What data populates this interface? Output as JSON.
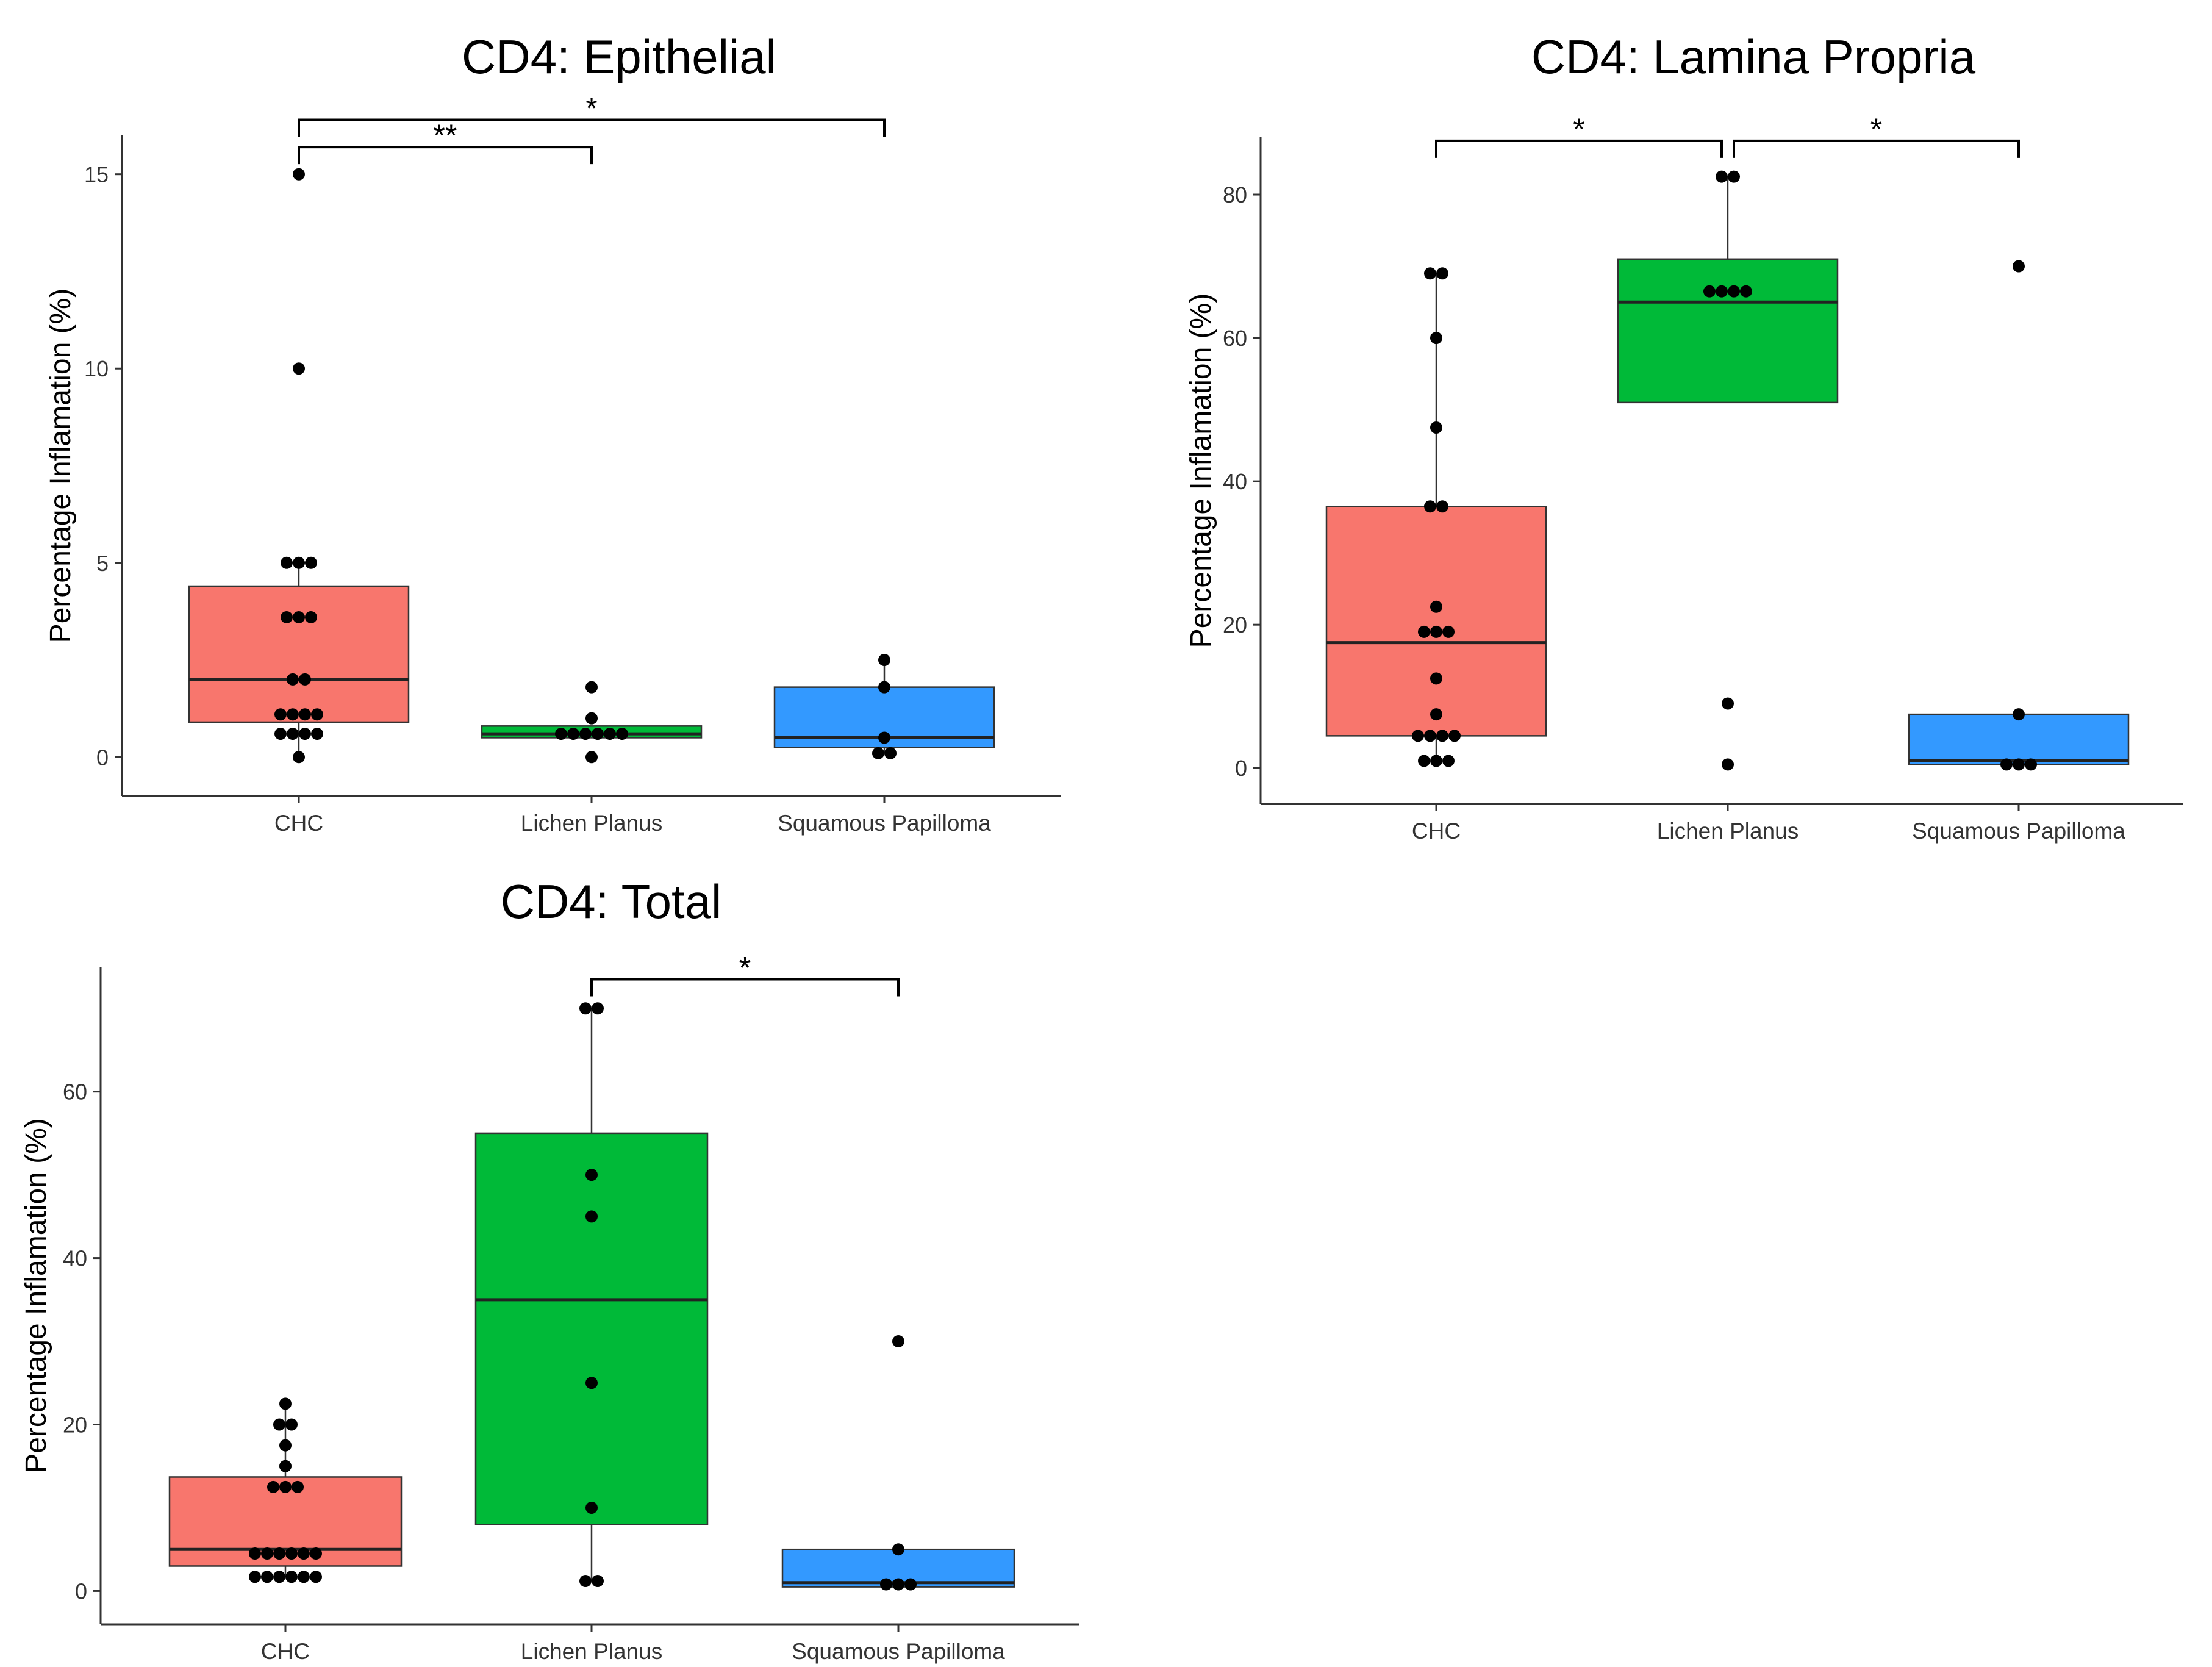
{
  "chart_data": [
    {
      "id": "epithelial",
      "type": "box",
      "title": "CD4: Epithelial",
      "xlabel": "",
      "ylabel": "Percentage Inflamation (%)",
      "ylim": [
        -1,
        16
      ],
      "yticks": [
        0,
        5,
        10,
        15
      ],
      "categories": [
        "CHC",
        "Lichen Planus",
        "Squamous Papilloma"
      ],
      "colors": [
        "#F8766D",
        "#00BA38",
        "#3399FF"
      ],
      "boxes": [
        {
          "q1": 0.9,
          "median": 2.0,
          "q3": 4.4,
          "whisker_low": 0,
          "whisker_high": 5.0
        },
        {
          "q1": 0.5,
          "median": 0.6,
          "q3": 0.8,
          "whisker_low": 0.5,
          "whisker_high": 0.8
        },
        {
          "q1": 0.25,
          "median": 0.5,
          "q3": 1.8,
          "whisker_low": 0.1,
          "whisker_high": 2.5
        }
      ],
      "points": [
        [
          15,
          10,
          5,
          5,
          5,
          3.6,
          3.6,
          3.6,
          2,
          2,
          1.1,
          1.1,
          1.1,
          1.1,
          0.6,
          0.6,
          0.6,
          0.6,
          0
        ],
        [
          1.8,
          1.0,
          0.6,
          0.6,
          0.6,
          0.6,
          0.6,
          0.6,
          0
        ],
        [
          2.5,
          1.8,
          0.5,
          0.1,
          0.1
        ]
      ],
      "significance": [
        {
          "from": 0,
          "to": 1,
          "label": "**",
          "y": 15.7
        },
        {
          "from": 0,
          "to": 2,
          "label": "*",
          "y": 16.4
        }
      ]
    },
    {
      "id": "lamina-propria",
      "type": "box",
      "title": "CD4: Lamina Propria",
      "xlabel": "",
      "ylabel": "Percentage Inflamation (%)",
      "ylim": [
        -5,
        88
      ],
      "yticks": [
        0,
        20,
        40,
        60,
        80
      ],
      "categories": [
        "CHC",
        "Lichen Planus",
        "Squamous Papilloma"
      ],
      "colors": [
        "#F8766D",
        "#00BA38",
        "#3399FF"
      ],
      "boxes": [
        {
          "q1": 4.5,
          "median": 17.5,
          "q3": 36.5,
          "whisker_low": 1,
          "whisker_high": 69
        },
        {
          "q1": 51,
          "median": 65,
          "q3": 71,
          "whisker_low": 51,
          "whisker_high": 82.5
        },
        {
          "q1": 0.5,
          "median": 1,
          "q3": 7.5,
          "whisker_low": 0.5,
          "whisker_high": 7.5
        }
      ],
      "points": [
        [
          69,
          69,
          60,
          47.5,
          36.5,
          36.5,
          22.5,
          19,
          19,
          19,
          12.5,
          7.5,
          4.5,
          4.5,
          4.5,
          4.5,
          1,
          1,
          1
        ],
        [
          82.5,
          82.5,
          66.5,
          66.5,
          66.5,
          66.5,
          9,
          0.5
        ],
        [
          70,
          7.5,
          0.5,
          0.5,
          0.5
        ]
      ],
      "significance": [
        {
          "from": 0,
          "to": 1,
          "label": "*",
          "y": 87.5
        },
        {
          "from": 1,
          "to": 2,
          "label": "*",
          "y": 87.5
        }
      ]
    },
    {
      "id": "total",
      "type": "box",
      "title": "CD4: Total",
      "xlabel": "",
      "ylabel": "Percentage Inflamation (%)",
      "ylim": [
        -4,
        75
      ],
      "yticks": [
        0,
        20,
        40,
        60
      ],
      "categories": [
        "CHC",
        "Lichen Planus",
        "Squamous Papilloma"
      ],
      "colors": [
        "#F8766D",
        "#00BA38",
        "#3399FF"
      ],
      "boxes": [
        {
          "q1": 3,
          "median": 5,
          "q3": 13.7,
          "whisker_low": 1.7,
          "whisker_high": 22.5
        },
        {
          "q1": 8,
          "median": 35,
          "q3": 55,
          "whisker_low": 1.2,
          "whisker_high": 70
        },
        {
          "q1": 0.5,
          "median": 1,
          "q3": 5,
          "whisker_low": 0.5,
          "whisker_high": 5
        }
      ],
      "points": [
        [
          22.5,
          20,
          20,
          17.5,
          15,
          12.5,
          12.5,
          12.5,
          4.5,
          4.5,
          4.5,
          4.5,
          4.5,
          4.5,
          1.7,
          1.7,
          1.7,
          1.7,
          1.7,
          1.7
        ],
        [
          70,
          70,
          50,
          45,
          25,
          10,
          1.2,
          1.2
        ],
        [
          30,
          5,
          0.8,
          0.8,
          0.8
        ]
      ],
      "significance": [
        {
          "from": 1,
          "to": 2,
          "label": "*",
          "y": 73.5
        }
      ]
    }
  ]
}
